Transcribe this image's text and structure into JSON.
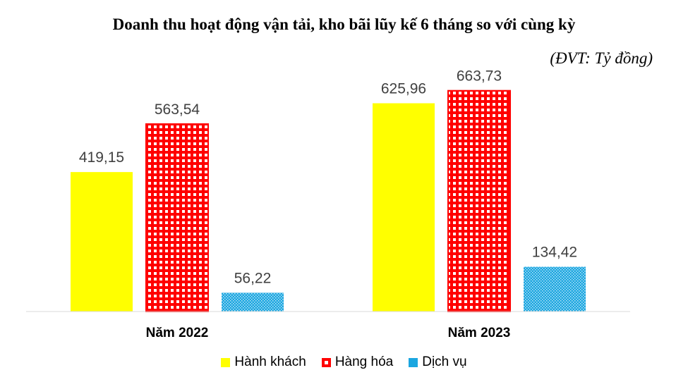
{
  "chart_data": {
    "type": "bar",
    "title": "Doanh thu hoạt động vận tải, kho bãi lũy kế 6 tháng so với cùng kỳ",
    "unit_note": "(ĐVT: Tỷ đồng)",
    "categories": [
      "Năm 2022",
      "Năm 2023"
    ],
    "series": [
      {
        "name": "Hành khách",
        "values": [
          419.15,
          625.96
        ],
        "labels": [
          "419,15",
          "625,96"
        ],
        "color": "#ffff00"
      },
      {
        "name": "Hàng hóa",
        "values": [
          563.54,
          663.73
        ],
        "labels": [
          "563,54",
          "663,73"
        ],
        "color": "#ff0000"
      },
      {
        "name": "Dịch vụ",
        "values": [
          56.22,
          134.42
        ],
        "labels": [
          "56,22",
          "134,42"
        ],
        "color": "#1ba6e0"
      }
    ],
    "ylim": [
      0,
      680
    ],
    "grid": false,
    "legend_position": "bottom"
  }
}
